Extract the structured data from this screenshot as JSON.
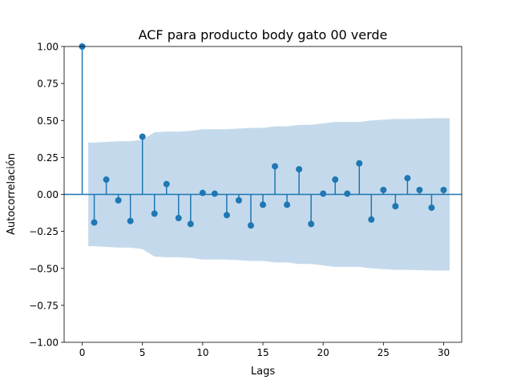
{
  "chart_data": {
    "type": "stem",
    "title": "ACF para producto body gato 00 verde",
    "xlabel": "Lags",
    "ylabel": "Autocorrelación",
    "xlim": [
      -1.5,
      31.5
    ],
    "ylim": [
      -1.0,
      1.0
    ],
    "x_ticks": [
      0,
      5,
      10,
      15,
      20,
      25,
      30
    ],
    "x_tick_labels": [
      "0",
      "5",
      "10",
      "15",
      "20",
      "25",
      "30"
    ],
    "y_ticks": [
      -1.0,
      -0.75,
      -0.5,
      -0.25,
      0.0,
      0.25,
      0.5,
      0.75,
      1.0
    ],
    "y_tick_labels": [
      "−1.00",
      "−0.75",
      "−0.50",
      "−0.25",
      "0.00",
      "0.25",
      "0.50",
      "0.75",
      "1.00"
    ],
    "lags": [
      0,
      1,
      2,
      3,
      4,
      5,
      6,
      7,
      8,
      9,
      10,
      11,
      12,
      13,
      14,
      15,
      16,
      17,
      18,
      19,
      20,
      21,
      22,
      23,
      24,
      25,
      26,
      27,
      28,
      29,
      30
    ],
    "acf": [
      1.0,
      -0.19,
      0.1,
      -0.04,
      -0.18,
      0.39,
      -0.13,
      0.07,
      -0.16,
      -0.2,
      0.01,
      0.005,
      -0.14,
      -0.04,
      -0.21,
      -0.07,
      0.19,
      -0.07,
      0.17,
      -0.2,
      0.005,
      0.1,
      0.005,
      0.21,
      -0.17,
      0.03,
      -0.08,
      0.11,
      0.03,
      -0.09,
      0.03
    ],
    "confint_lags": [
      1,
      2,
      3,
      4,
      5,
      6,
      7,
      8,
      9,
      10,
      11,
      12,
      13,
      14,
      15,
      16,
      17,
      18,
      19,
      20,
      21,
      22,
      23,
      24,
      25,
      26,
      27,
      28,
      29,
      30
    ],
    "confint_upper": [
      0.35,
      0.355,
      0.36,
      0.36,
      0.37,
      0.42,
      0.425,
      0.425,
      0.43,
      0.44,
      0.44,
      0.44,
      0.445,
      0.45,
      0.45,
      0.46,
      0.46,
      0.47,
      0.47,
      0.48,
      0.49,
      0.49,
      0.49,
      0.5,
      0.505,
      0.51,
      0.51,
      0.512,
      0.515,
      0.515
    ],
    "grid": false,
    "colors": {
      "stem": "#1f77b4",
      "marker": "#1f77b4",
      "zero_line": "#1f77b4",
      "band": "#c4daec"
    }
  }
}
